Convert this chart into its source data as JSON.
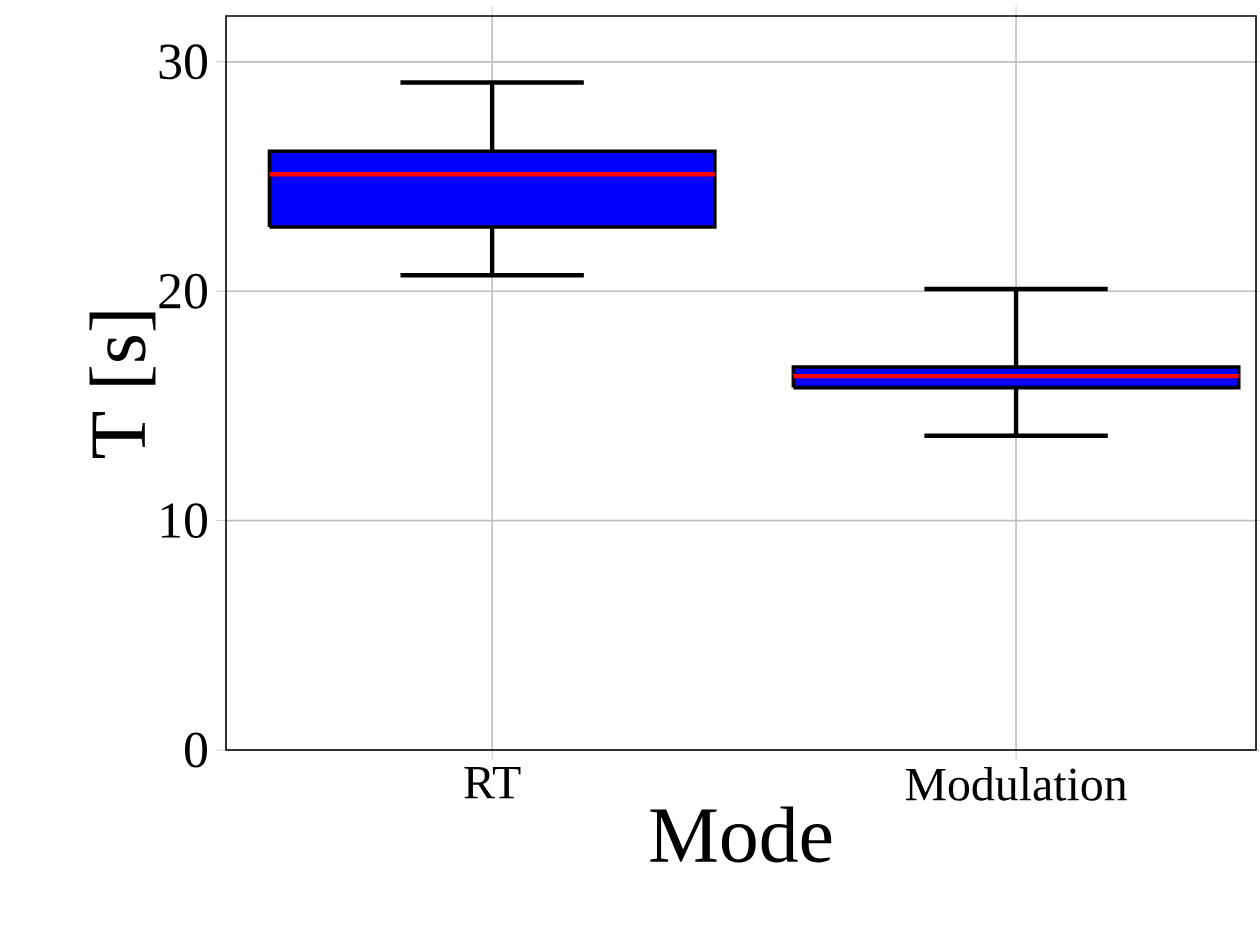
{
  "chart_data": {
    "type": "box",
    "xlabel": "Mode",
    "ylabel": "T [s]",
    "categories": [
      "RT",
      "Modulation"
    ],
    "boxes": [
      {
        "low": 20.7,
        "q1": 22.8,
        "median": 25.1,
        "q3": 26.1,
        "high": 29.1
      },
      {
        "low": 13.7,
        "q1": 15.8,
        "median": 16.3,
        "q3": 16.7,
        "high": 20.1
      }
    ],
    "color": "#0000ff",
    "ylim": [
      0,
      32
    ],
    "yticks": [
      0,
      10,
      20,
      30
    ],
    "grid": true
  }
}
